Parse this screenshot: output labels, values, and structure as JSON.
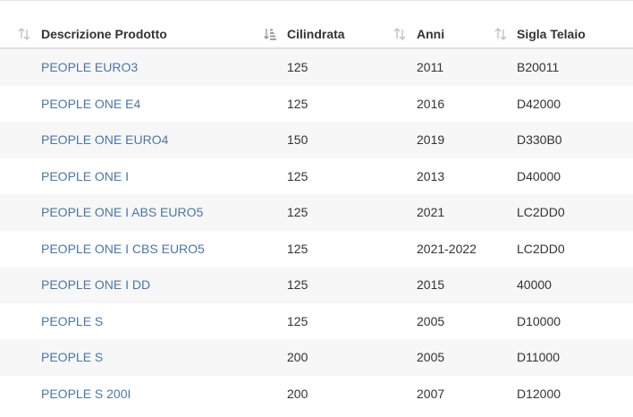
{
  "table": {
    "columns": [
      {
        "label": "Descrizione Prodotto",
        "sort_icon": "sort-both-icon"
      },
      {
        "label": "Cilindrata",
        "sort_icon": "sort-amount-active-icon"
      },
      {
        "label": "Anni",
        "sort_icon": "sort-both-icon"
      },
      {
        "label": "Sigla Telaio",
        "sort_icon": "sort-both-icon"
      }
    ],
    "rows": [
      {
        "descrizione": "PEOPLE EURO3",
        "cilindrata": "125",
        "anni": "2011",
        "sigla": "B20011"
      },
      {
        "descrizione": "PEOPLE ONE E4",
        "cilindrata": "125",
        "anni": "2016",
        "sigla": "D42000"
      },
      {
        "descrizione": "PEOPLE ONE EURO4",
        "cilindrata": "150",
        "anni": "2019",
        "sigla": "D330B0"
      },
      {
        "descrizione": "PEOPLE ONE I",
        "cilindrata": "125",
        "anni": "2013",
        "sigla": "D40000"
      },
      {
        "descrizione": "PEOPLE ONE I ABS EURO5",
        "cilindrata": "125",
        "anni": "2021",
        "sigla": "LC2DD0"
      },
      {
        "descrizione": "PEOPLE ONE I CBS EURO5",
        "cilindrata": "125",
        "anni": "2021-2022",
        "sigla": "LC2DD0"
      },
      {
        "descrizione": "PEOPLE ONE I DD",
        "cilindrata": "125",
        "anni": "2015",
        "sigla": "40000"
      },
      {
        "descrizione": "PEOPLE S",
        "cilindrata": "125",
        "anni": "2005",
        "sigla": "D10000"
      },
      {
        "descrizione": "PEOPLE S",
        "cilindrata": "200",
        "anni": "2005",
        "sigla": "D11000"
      },
      {
        "descrizione": "PEOPLE S 200I",
        "cilindrata": "200",
        "anni": "2007",
        "sigla": "D12000"
      }
    ]
  },
  "colors": {
    "link": "#4a76a8",
    "stripe": "#f7f7f7",
    "header_border": "#dedede",
    "sort_icon": "#c2c2c2",
    "sort_icon_active": "#999999"
  }
}
